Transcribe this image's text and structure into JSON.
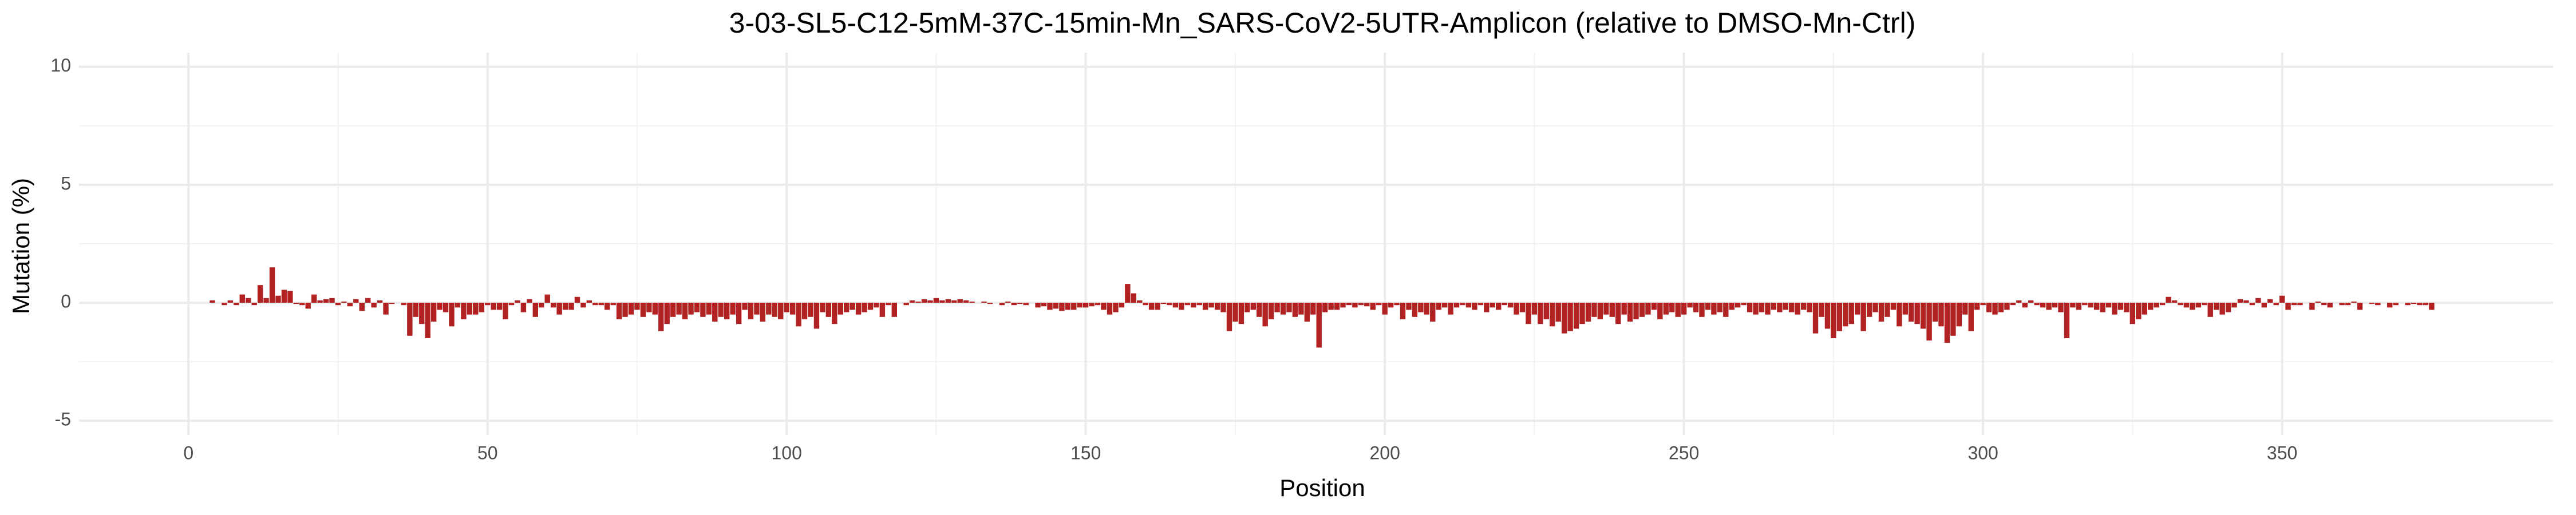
{
  "chart_data": {
    "type": "bar",
    "title": "3-03-SL5-C12-5mM-37C-15min-Mn_SARS-CoV2-5UTR-Amplicon (relative to DMSO-Mn-Ctrl)",
    "x_label": "Position",
    "y_label": "Mutation (%)",
    "color": "#b22222",
    "grid": true,
    "xlim": [
      -18.3,
      395.3
    ],
    "xticks": [
      0,
      50,
      100,
      150,
      200,
      250,
      300,
      350
    ],
    "ylim": [
      -5.6,
      10.6
    ],
    "yticks": [
      -5,
      0,
      5,
      10
    ],
    "x": [
      4,
      5,
      6,
      7,
      8,
      9,
      10,
      11,
      12,
      13,
      14,
      15,
      16,
      17,
      18,
      19,
      20,
      21,
      22,
      23,
      24,
      25,
      26,
      27,
      28,
      29,
      30,
      31,
      32,
      33,
      34,
      35,
      36,
      37,
      38,
      39,
      40,
      41,
      42,
      43,
      44,
      45,
      46,
      47,
      48,
      49,
      50,
      51,
      52,
      53,
      54,
      55,
      56,
      57,
      58,
      59,
      60,
      61,
      62,
      63,
      64,
      65,
      66,
      67,
      68,
      69,
      70,
      71,
      72,
      73,
      74,
      75,
      76,
      77,
      78,
      79,
      80,
      81,
      82,
      83,
      84,
      85,
      86,
      87,
      88,
      89,
      90,
      91,
      92,
      93,
      94,
      95,
      96,
      97,
      98,
      99,
      100,
      101,
      102,
      103,
      104,
      105,
      106,
      107,
      108,
      109,
      110,
      111,
      112,
      113,
      114,
      115,
      116,
      117,
      118,
      119,
      120,
      121,
      122,
      123,
      124,
      125,
      126,
      127,
      128,
      129,
      130,
      131,
      132,
      133,
      134,
      135,
      136,
      137,
      138,
      139,
      140,
      141,
      142,
      143,
      144,
      145,
      146,
      147,
      148,
      149,
      150,
      151,
      152,
      153,
      154,
      155,
      156,
      157,
      158,
      159,
      160,
      161,
      162,
      163,
      164,
      165,
      166,
      167,
      168,
      169,
      170,
      171,
      172,
      173,
      174,
      175,
      176,
      177,
      178,
      179,
      180,
      181,
      182,
      183,
      184,
      185,
      186,
      187,
      188,
      189,
      190,
      191,
      192,
      193,
      194,
      195,
      196,
      197,
      198,
      199,
      200,
      201,
      202,
      203,
      204,
      205,
      206,
      207,
      208,
      209,
      210,
      211,
      212,
      213,
      214,
      215,
      216,
      217,
      218,
      219,
      220,
      221,
      222,
      223,
      224,
      225,
      226,
      227,
      228,
      229,
      230,
      231,
      232,
      233,
      234,
      235,
      236,
      237,
      238,
      239,
      240,
      241,
      242,
      243,
      244,
      245,
      246,
      247,
      248,
      249,
      250,
      251,
      252,
      253,
      254,
      255,
      256,
      257,
      258,
      259,
      260,
      261,
      262,
      263,
      264,
      265,
      266,
      267,
      268,
      269,
      270,
      271,
      272,
      273,
      274,
      275,
      276,
      277,
      278,
      279,
      280,
      281,
      282,
      283,
      284,
      285,
      286,
      287,
      288,
      289,
      290,
      291,
      292,
      293,
      294,
      295,
      296,
      297,
      298,
      299,
      300,
      301,
      302,
      303,
      304,
      305,
      306,
      307,
      308,
      309,
      310,
      311,
      312,
      313,
      314,
      315,
      316,
      317,
      318,
      319,
      320,
      321,
      322,
      323,
      324,
      325,
      326,
      327,
      328,
      329,
      330,
      331,
      332,
      333,
      334,
      335,
      336,
      337,
      338,
      339,
      340,
      341,
      342,
      343,
      344,
      345,
      346,
      347,
      348,
      349,
      350,
      351,
      352,
      353,
      354,
      355,
      356,
      357,
      358,
      359,
      360,
      361,
      362,
      363,
      364,
      365,
      366,
      367,
      368,
      369,
      370,
      371,
      372,
      373,
      374,
      375
    ],
    "values": [
      0.1,
      0,
      -0.1,
      0.1,
      -0.1,
      0.35,
      0.2,
      -0.1,
      0.75,
      0.2,
      1.5,
      0.3,
      0.55,
      0.5,
      -0.05,
      -0.1,
      -0.25,
      0.35,
      0.1,
      0.15,
      0.2,
      -0.1,
      0.05,
      -0.15,
      0.15,
      -0.35,
      0.2,
      -0.2,
      0.1,
      -0.5,
      -0.05,
      0,
      -0.1,
      -1.4,
      -0.6,
      -0.9,
      -1.5,
      -0.8,
      -0.3,
      -0.4,
      -1,
      -0.2,
      -0.7,
      -0.5,
      -0.5,
      -0.4,
      -0.1,
      -0.3,
      -0.3,
      -0.7,
      -0.1,
      0.1,
      -0.4,
      0.15,
      -0.6,
      -0.2,
      0.35,
      -0.2,
      -0.5,
      -0.3,
      -0.3,
      0.25,
      -0.2,
      0.1,
      -0.1,
      -0.1,
      -0.3,
      -0.1,
      -0.7,
      -0.6,
      -0.5,
      -0.3,
      -0.6,
      -0.4,
      -0.5,
      -1.2,
      -0.9,
      -0.6,
      -0.5,
      -0.7,
      -0.5,
      -0.4,
      -0.6,
      -0.5,
      -0.8,
      -0.6,
      -0.7,
      -0.5,
      -0.9,
      -0.3,
      -0.7,
      -0.5,
      -0.8,
      -0.5,
      -0.6,
      -0.7,
      -0.4,
      -0.5,
      -1,
      -0.7,
      -0.6,
      -1.1,
      -0.4,
      -0.6,
      -0.9,
      -0.5,
      -0.4,
      -0.3,
      -0.5,
      -0.4,
      -0.3,
      -0.2,
      -0.6,
      -0.1,
      -0.6,
      0,
      -0.1,
      0.1,
      0.05,
      0.15,
      0.1,
      0.2,
      0.1,
      0.15,
      0.1,
      0.15,
      0.1,
      0.05,
      0,
      0.05,
      -0.05,
      0,
      -0.1,
      0.05,
      -0.1,
      -0.05,
      -0.1,
      0,
      -0.2,
      -0.15,
      -0.3,
      -0.25,
      -0.35,
      -0.3,
      -0.3,
      -0.2,
      -0.2,
      -0.15,
      -0.1,
      -0.3,
      -0.5,
      -0.4,
      -0.2,
      0.8,
      0.4,
      0.1,
      -0.1,
      -0.3,
      -0.3,
      -0.05,
      -0.1,
      -0.2,
      -0.3,
      -0.1,
      -0.2,
      -0.1,
      -0.3,
      -0.2,
      -0.3,
      -0.4,
      -1.2,
      -0.8,
      -0.9,
      -0.4,
      -0.3,
      -0.6,
      -1,
      -0.7,
      -0.4,
      -0.5,
      -0.4,
      -0.6,
      -0.5,
      -0.8,
      -0.5,
      -1.9,
      -0.4,
      -0.3,
      -0.3,
      -0.2,
      -0.1,
      -0.2,
      -0.1,
      -0.15,
      -0.3,
      -0.1,
      -0.5,
      -0.2,
      -0.1,
      -0.7,
      -0.3,
      -0.6,
      -0.4,
      -0.5,
      -0.8,
      -0.3,
      -0.2,
      -0.5,
      -0.2,
      -0.1,
      -0.2,
      -0.3,
      -0.1,
      -0.4,
      -0.2,
      -0.3,
      -0.1,
      -0.2,
      -0.5,
      -0.4,
      -0.9,
      -0.5,
      -0.9,
      -0.7,
      -1.0,
      -0.8,
      -1.3,
      -1.2,
      -1.1,
      -0.9,
      -0.8,
      -0.6,
      -0.7,
      -0.5,
      -0.6,
      -0.9,
      -0.5,
      -0.8,
      -0.7,
      -0.6,
      -0.5,
      -0.3,
      -0.7,
      -0.5,
      -0.4,
      -0.6,
      -0.5,
      -0.2,
      -0.4,
      -0.6,
      -0.3,
      -0.5,
      -0.4,
      -0.6,
      -0.3,
      -0.2,
      -0.1,
      -0.4,
      -0.5,
      -0.4,
      -0.5,
      -0.3,
      -0.4,
      -0.3,
      -0.4,
      -0.5,
      -0.3,
      -0.4,
      -1.3,
      -0.6,
      -1.1,
      -1.5,
      -1.2,
      -1.0,
      -0.9,
      -0.5,
      -1.2,
      -0.6,
      -0.4,
      -0.8,
      -0.6,
      -0.3,
      -1.0,
      -0.5,
      -0.8,
      -0.9,
      -1.1,
      -1.6,
      -0.8,
      -1.0,
      -1.7,
      -1.4,
      -1.0,
      -0.5,
      -1.2,
      -0.3,
      -0.1,
      -0.4,
      -0.5,
      -0.4,
      -0.3,
      -0.1,
      0.1,
      -0.2,
      0.1,
      -0.1,
      -0.2,
      -0.3,
      -0.2,
      -0.4,
      -1.5,
      -0.2,
      -0.3,
      -0.1,
      -0.2,
      -0.3,
      -0.4,
      -0.2,
      -0.5,
      -0.3,
      -0.4,
      -0.9,
      -0.7,
      -0.5,
      -0.3,
      -0.2,
      -0.1,
      0.25,
      0.1,
      -0.1,
      -0.2,
      -0.3,
      -0.2,
      -0.1,
      -0.6,
      -0.3,
      -0.5,
      -0.4,
      -0.2,
      0.15,
      0.1,
      -0.1,
      0.2,
      -0.2,
      0.15,
      -0.1,
      0.3,
      -0.3,
      -0.1,
      -0.1,
      0,
      -0.3,
      0.05,
      -0.1,
      -0.2,
      0,
      -0.1,
      -0.1,
      0.05,
      -0.3,
      0,
      -0.05,
      -0.1,
      0,
      -0.2,
      -0.1,
      0,
      -0.1,
      -0.05,
      -0.1,
      -0.1,
      -0.3
    ]
  }
}
